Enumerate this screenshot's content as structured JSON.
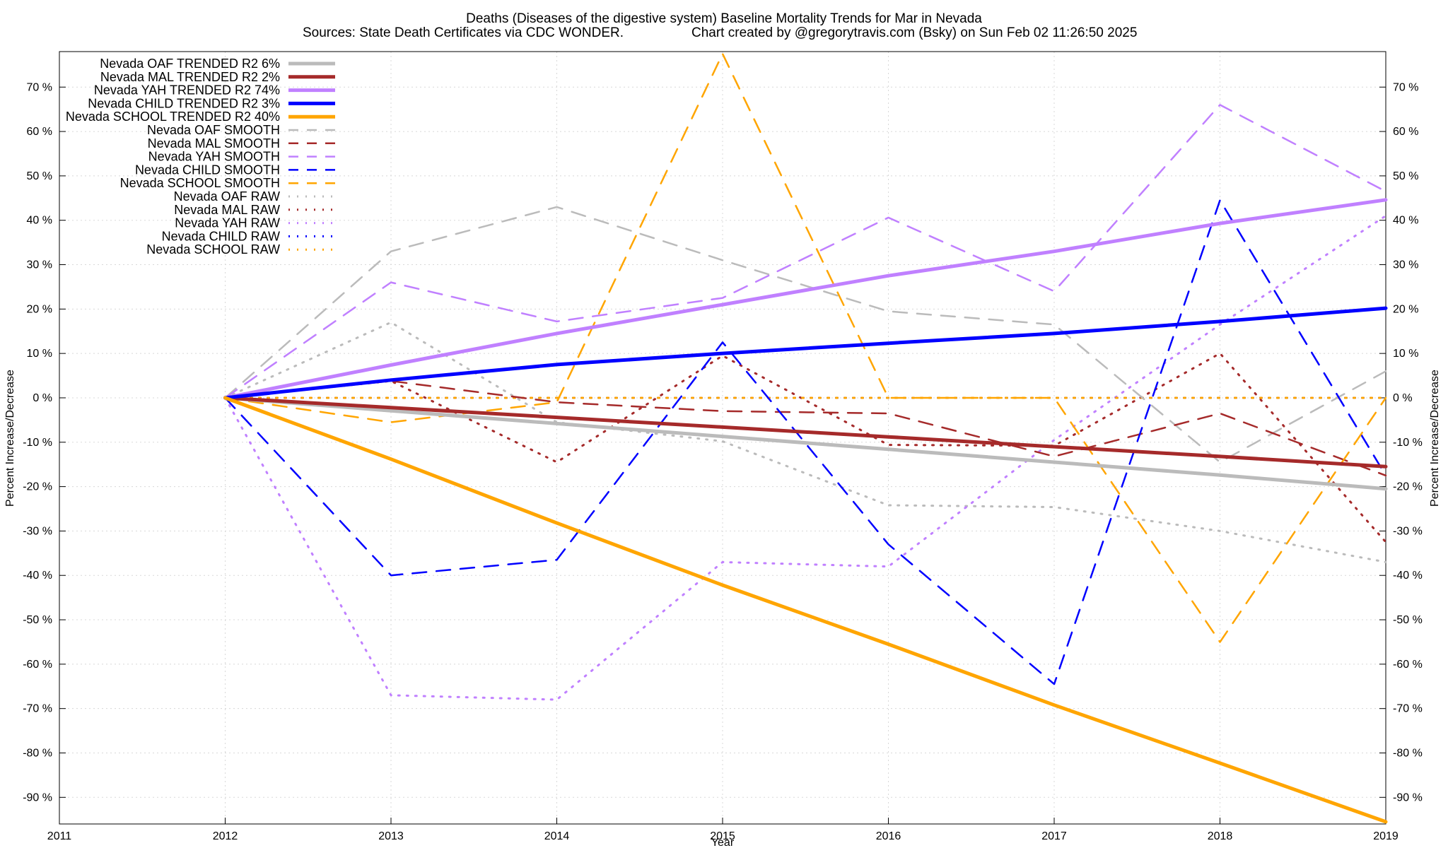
{
  "chart_data": {
    "type": "line",
    "title": "Deaths (Diseases of the digestive system)  Baseline Mortality Trends for Mar in Nevada",
    "subtitle_left": "Sources: State Death Certificates via CDC WONDER.",
    "subtitle_right": "Chart created by @gregorytravis.com (Bsky) on Sun Feb 02 11:26:50 2025",
    "xlabel": "Year",
    "ylabel": "Percent Increase/Decrease",
    "y2label": "Percent Increase/Decrease",
    "xlim": [
      2011,
      2019
    ],
    "ylim": [
      -96,
      78
    ],
    "x_ticks": [
      "2011",
      "2012",
      "2013",
      "2014",
      "2015",
      "2016",
      "2017",
      "2018",
      "2019"
    ],
    "y_ticks": [
      {
        "value": 70,
        "label": "70 %"
      },
      {
        "value": 60,
        "label": "60 %"
      },
      {
        "value": 50,
        "label": "50 %"
      },
      {
        "value": 40,
        "label": "40 %"
      },
      {
        "value": 30,
        "label": "30 %"
      },
      {
        "value": 20,
        "label": "20 %"
      },
      {
        "value": 10,
        "label": "10 %"
      },
      {
        "value": 0,
        "label": "0 %"
      },
      {
        "value": -10,
        "label": "-10 %"
      },
      {
        "value": -20,
        "label": "-20 %"
      },
      {
        "value": -30,
        "label": "-30 %"
      },
      {
        "value": -40,
        "label": "-40 %"
      },
      {
        "value": -50,
        "label": "-50 %"
      },
      {
        "value": -60,
        "label": "-60 %"
      },
      {
        "value": -70,
        "label": "-70 %"
      },
      {
        "value": -80,
        "label": "-80 %"
      },
      {
        "value": -90,
        "label": "-90 %"
      }
    ],
    "grid": true,
    "legend_position": "top-left",
    "series": [
      {
        "name": "Nevada OAF TRENDED R2   6%",
        "style": "solid",
        "color": "#bbbbbb",
        "x": [
          2012,
          2013,
          2014,
          2015,
          2016,
          2017,
          2018,
          2019
        ],
        "y": [
          0,
          -2.9,
          -5.8,
          -8.7,
          -11.6,
          -14.5,
          -17.4,
          -20.5
        ]
      },
      {
        "name": "Nevada MAL TRENDED R2   2%",
        "style": "solid",
        "color": "#a52a2a",
        "x": [
          2012,
          2013,
          2014,
          2015,
          2016,
          2017,
          2018,
          2019
        ],
        "y": [
          0,
          -2.2,
          -4.4,
          -6.6,
          -8.8,
          -11,
          -13.2,
          -15.5
        ]
      },
      {
        "name": "Nevada YAH TRENDED R2  74%",
        "style": "solid",
        "color": "#c080ff",
        "x": [
          2012,
          2013,
          2014,
          2015,
          2016,
          2017,
          2018,
          2019
        ],
        "y": [
          0,
          7.4,
          14.5,
          21,
          27.5,
          33,
          39.3,
          44.6
        ]
      },
      {
        "name": "Nevada CHILD TRENDED R2   3%",
        "style": "solid",
        "color": "#0000ff",
        "x": [
          2012,
          2013,
          2014,
          2015,
          2016,
          2017,
          2018,
          2019
        ],
        "y": [
          0,
          4,
          7.5,
          10,
          12.3,
          14.5,
          17.2,
          20.2
        ]
      },
      {
        "name": "Nevada SCHOOL TRENDED R2  40%",
        "style": "solid",
        "color": "#ffa500",
        "x": [
          2012,
          2013,
          2014,
          2015,
          2016,
          2017,
          2018,
          2019
        ],
        "y": [
          0,
          -13.8,
          -28.2,
          -42.2,
          -55.5,
          -69.2,
          -82.3,
          -95.5
        ]
      },
      {
        "name": "Nevada OAF SMOOTH",
        "style": "dashed",
        "color": "#bbbbbb",
        "x": [
          2012,
          2013,
          2014,
          2015,
          2016,
          2017,
          2018,
          2019
        ],
        "y": [
          0,
          33,
          43,
          31,
          19.5,
          16.5,
          -14.5,
          6
        ]
      },
      {
        "name": "Nevada MAL SMOOTH",
        "style": "dashed",
        "color": "#a52a2a",
        "x": [
          2012,
          2013,
          2014,
          2015,
          2016,
          2017,
          2018,
          2019
        ],
        "y": [
          0,
          3.8,
          -1,
          -3,
          -3.5,
          -13.2,
          -3.5,
          -17.5
        ]
      },
      {
        "name": "Nevada YAH SMOOTH",
        "style": "dashed",
        "color": "#c080ff",
        "x": [
          2012,
          2013,
          2014,
          2015,
          2016,
          2017,
          2018,
          2019
        ],
        "y": [
          0,
          26,
          17.2,
          22.5,
          40.6,
          24,
          66,
          46.5
        ]
      },
      {
        "name": "Nevada CHILD SMOOTH",
        "style": "dashed",
        "color": "#0000ff",
        "x": [
          2012,
          2013,
          2014,
          2015,
          2016,
          2017,
          2018,
          2019
        ],
        "y": [
          0,
          -40,
          -36.5,
          12.5,
          -33,
          -64.5,
          44.5,
          -17.5
        ]
      },
      {
        "name": "Nevada SCHOOL SMOOTH",
        "style": "dashed",
        "color": "#ffa500",
        "x": [
          2012,
          2013,
          2014,
          2015,
          2016,
          2017,
          2018,
          2019
        ],
        "y": [
          0,
          -5.5,
          -1,
          77.5,
          0,
          0,
          -55,
          0
        ]
      },
      {
        "name": "Nevada OAF RAW",
        "style": "dotted",
        "color": "#bbbbbb",
        "x": [
          2012,
          2013,
          2014,
          2015,
          2016,
          2017,
          2018,
          2019
        ],
        "y": [
          0,
          17,
          -5.5,
          -9.8,
          -24.2,
          -24.6,
          -30,
          -37
        ]
      },
      {
        "name": "Nevada MAL RAW",
        "style": "dotted",
        "color": "#a52a2a",
        "x": [
          2012,
          2013,
          2014,
          2015,
          2016,
          2017,
          2018,
          2019
        ],
        "y": [
          0,
          3.8,
          -14.5,
          9.5,
          -10.6,
          -10.8,
          10,
          -32.5
        ]
      },
      {
        "name": "Nevada YAH RAW",
        "style": "dotted",
        "color": "#c080ff",
        "x": [
          2012,
          2013,
          2014,
          2015,
          2016,
          2017,
          2018,
          2019
        ],
        "y": [
          0,
          -67,
          -68,
          -37,
          -38,
          -9.5,
          16.5,
          41
        ]
      },
      {
        "name": "Nevada CHILD RAW",
        "style": "dotted",
        "color": "#0000ff",
        "x": [
          2012,
          2013,
          2014,
          2015,
          2016,
          2017,
          2018,
          2019
        ],
        "y": [
          0,
          0,
          0,
          0,
          0,
          0,
          0,
          0
        ]
      },
      {
        "name": "Nevada SCHOOL RAW",
        "style": "dotted",
        "color": "#ffa500",
        "x": [
          2012,
          2013,
          2014,
          2015,
          2016,
          2017,
          2018,
          2019
        ],
        "y": [
          0,
          0,
          0,
          0,
          0,
          0,
          0,
          0
        ]
      }
    ]
  }
}
